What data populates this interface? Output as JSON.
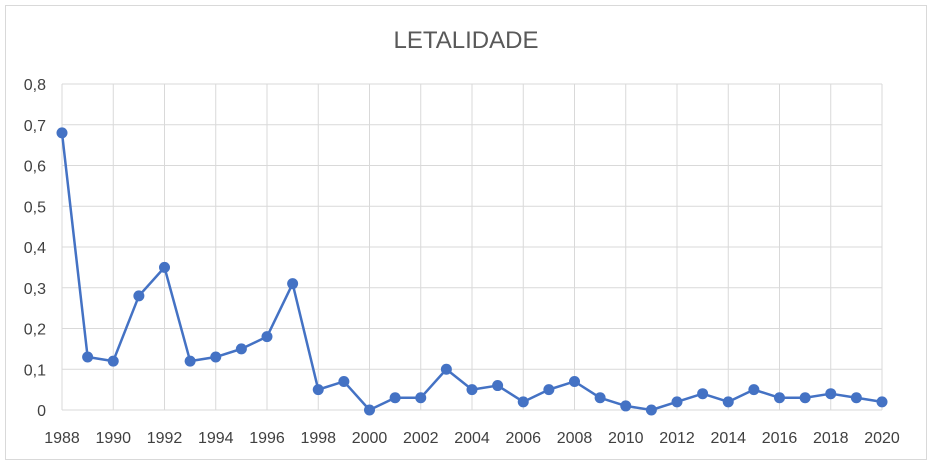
{
  "chart_data": {
    "type": "line",
    "title": "LETALIDADE",
    "xlabel": "",
    "ylabel": "",
    "x": [
      1988,
      1989,
      1990,
      1991,
      1992,
      1993,
      1994,
      1995,
      1996,
      1997,
      1998,
      1999,
      2000,
      2001,
      2002,
      2003,
      2004,
      2005,
      2006,
      2007,
      2008,
      2009,
      2010,
      2011,
      2012,
      2013,
      2014,
      2015,
      2016,
      2017,
      2018,
      2019,
      2020
    ],
    "x_ticks": [
      1988,
      1990,
      1992,
      1994,
      1996,
      1998,
      2000,
      2002,
      2004,
      2006,
      2008,
      2010,
      2012,
      2014,
      2016,
      2018,
      2020
    ],
    "x_tick_labels": [
      "1988",
      "1990",
      "1992",
      "1994",
      "1996",
      "1998",
      "2000",
      "2002",
      "2004",
      "2006",
      "2008",
      "2010",
      "2012",
      "2014",
      "2016",
      "2018",
      "2020"
    ],
    "xlim": [
      1988,
      2020
    ],
    "series": [
      {
        "values": [
          0.68,
          0.13,
          0.12,
          0.28,
          0.35,
          0.12,
          0.13,
          0.15,
          0.18,
          0.31,
          0.05,
          0.07,
          0.0,
          0.03,
          0.03,
          0.1,
          0.05,
          0.06,
          0.02,
          0.05,
          0.07,
          0.03,
          0.01,
          0.0,
          0.02,
          0.04,
          0.02,
          0.05,
          0.03,
          0.03,
          0.04,
          0.03,
          0.02
        ],
        "color": "#4472c4"
      }
    ],
    "y_ticks": [
      0,
      0.1,
      0.2,
      0.3,
      0.4,
      0.5,
      0.6,
      0.7,
      0.8
    ],
    "y_tick_labels": [
      "0",
      "0,1",
      "0,2",
      "0,3",
      "0,4",
      "0,5",
      "0,6",
      "0,7",
      "0,8"
    ],
    "ylim": [
      0,
      0.8
    ],
    "grid": true,
    "legend": "none"
  }
}
